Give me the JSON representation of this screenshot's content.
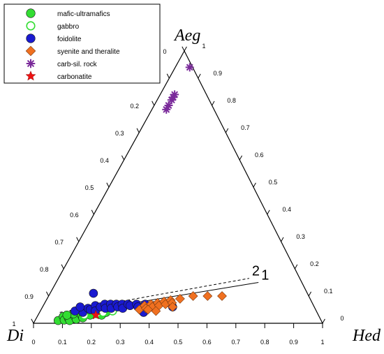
{
  "chart_data": {
    "type": "scatter",
    "subtype": "ternary",
    "title": "",
    "apices": {
      "left": "Di",
      "top": "Aeg",
      "right": "Hed"
    },
    "tick_labels": {
      "bottom": [
        "0",
        "0.1",
        "0.2",
        "0.3",
        "0.4",
        "0.5",
        "0.6",
        "0.7",
        "0.8",
        "0.9",
        "1"
      ],
      "left": [
        "1",
        "0.9",
        "0.8",
        "0.7",
        "0.6",
        "0.5",
        "0.4",
        "0.3",
        "0.2",
        "0.1",
        "0"
      ],
      "right": [
        "1",
        "0.9",
        "0.8",
        "0.7",
        "0.6",
        "0.5",
        "0.4",
        "0.3",
        "0.2",
        "0.1",
        "0"
      ]
    },
    "legend_position": "top-left",
    "series": [
      {
        "name": "mafic-ultramafics",
        "marker": "circle-filled",
        "color": "#33dd33",
        "points": [
          {
            "hed": 0.08,
            "aeg": 0.01
          },
          {
            "hed": 0.09,
            "aeg": 0.025
          },
          {
            "hed": 0.1,
            "aeg": 0.012
          },
          {
            "hed": 0.11,
            "aeg": 0.02
          },
          {
            "hed": 0.12,
            "aeg": 0.01
          },
          {
            "hed": 0.13,
            "aeg": 0.025
          },
          {
            "hed": 0.14,
            "aeg": 0.015
          },
          {
            "hed": 0.15,
            "aeg": 0.03
          },
          {
            "hed": 0.16,
            "aeg": 0.02
          },
          {
            "hed": 0.17,
            "aeg": 0.035
          },
          {
            "hed": 0.18,
            "aeg": 0.03
          },
          {
            "hed": 0.12,
            "aeg": 0.035
          },
          {
            "hed": 0.1,
            "aeg": 0.03
          },
          {
            "hed": 0.2,
            "aeg": 0.035
          },
          {
            "hed": 0.22,
            "aeg": 0.03
          },
          {
            "hed": 0.23,
            "aeg": 0.04
          }
        ]
      },
      {
        "name": "gabbro",
        "marker": "circle-open",
        "color": "#33dd33",
        "points": [
          {
            "hed": 0.16,
            "aeg": 0.03
          },
          {
            "hed": 0.2,
            "aeg": 0.035
          },
          {
            "hed": 0.22,
            "aeg": 0.04
          },
          {
            "hed": 0.25,
            "aeg": 0.045
          }
        ]
      },
      {
        "name": "foidolite",
        "marker": "circle-filled",
        "color": "#1a1ad0",
        "points": [
          {
            "hed": 0.14,
            "aeg": 0.05
          },
          {
            "hed": 0.15,
            "aeg": 0.04
          },
          {
            "hed": 0.16,
            "aeg": 0.055
          },
          {
            "hed": 0.17,
            "aeg": 0.05
          },
          {
            "hed": 0.18,
            "aeg": 0.065
          },
          {
            "hed": 0.19,
            "aeg": 0.045
          },
          {
            "hed": 0.2,
            "aeg": 0.06
          },
          {
            "hed": 0.21,
            "aeg": 0.07
          },
          {
            "hed": 0.22,
            "aeg": 0.055
          },
          {
            "hed": 0.23,
            "aeg": 0.07
          },
          {
            "hed": 0.24,
            "aeg": 0.055
          },
          {
            "hed": 0.25,
            "aeg": 0.07
          },
          {
            "hed": 0.26,
            "aeg": 0.06
          },
          {
            "hed": 0.27,
            "aeg": 0.07
          },
          {
            "hed": 0.28,
            "aeg": 0.055
          },
          {
            "hed": 0.29,
            "aeg": 0.07
          },
          {
            "hed": 0.3,
            "aeg": 0.065
          },
          {
            "hed": 0.32,
            "aeg": 0.07
          },
          {
            "hed": 0.33,
            "aeg": 0.06
          },
          {
            "hed": 0.35,
            "aeg": 0.07
          },
          {
            "hed": 0.36,
            "aeg": 0.04
          },
          {
            "hed": 0.38,
            "aeg": 0.065
          },
          {
            "hed": 0.45,
            "aeg": 0.06
          },
          {
            "hed": 0.44,
            "aeg": 0.07
          },
          {
            "hed": 0.15,
            "aeg": 0.11
          },
          {
            "hed": 0.12,
            "aeg": 0.045
          },
          {
            "hed": 0.13,
            "aeg": 0.06
          }
        ]
      },
      {
        "name": "syenite and theralite",
        "marker": "diamond",
        "color": "#f07020",
        "points": [
          {
            "hed": 0.34,
            "aeg": 0.05
          },
          {
            "hed": 0.35,
            "aeg": 0.065
          },
          {
            "hed": 0.36,
            "aeg": 0.055
          },
          {
            "hed": 0.37,
            "aeg": 0.07
          },
          {
            "hed": 0.38,
            "aeg": 0.06
          },
          {
            "hed": 0.39,
            "aeg": 0.075
          },
          {
            "hed": 0.4,
            "aeg": 0.065
          },
          {
            "hed": 0.41,
            "aeg": 0.08
          },
          {
            "hed": 0.42,
            "aeg": 0.07
          },
          {
            "hed": 0.43,
            "aeg": 0.085
          },
          {
            "hed": 0.44,
            "aeg": 0.075
          },
          {
            "hed": 0.46,
            "aeg": 0.09
          },
          {
            "hed": 0.5,
            "aeg": 0.1
          },
          {
            "hed": 0.55,
            "aeg": 0.1
          },
          {
            "hed": 0.6,
            "aeg": 0.1
          },
          {
            "hed": 0.45,
            "aeg": 0.06
          },
          {
            "hed": 0.4,
            "aeg": 0.045
          },
          {
            "hed": 0.37,
            "aeg": 0.05
          }
        ]
      },
      {
        "name": "carb-sil. rock",
        "marker": "asterisk",
        "color": "#7a2a9a",
        "points": [
          {
            "hed": 0.05,
            "aeg": 0.94
          },
          {
            "hed": 0.05,
            "aeg": 0.84
          },
          {
            "hed": 0.05,
            "aeg": 0.83
          },
          {
            "hed": 0.05,
            "aeg": 0.82
          },
          {
            "hed": 0.05,
            "aeg": 0.8
          },
          {
            "hed": 0.05,
            "aeg": 0.785
          }
        ]
      },
      {
        "name": "carbonatite",
        "marker": "star",
        "color": "#ee1111",
        "points": [
          {
            "hed": 0.2,
            "aeg": 0.03
          }
        ]
      }
    ],
    "lines": [
      {
        "label": "1",
        "style": "solid",
        "points": [
          {
            "hed": 0.1,
            "aeg": 0.035
          },
          {
            "hed": 0.7,
            "aeg": 0.15
          }
        ]
      },
      {
        "label": "2",
        "style": "dashed",
        "points": [
          {
            "hed": 0.07,
            "aeg": 0.04
          },
          {
            "hed": 0.66,
            "aeg": 0.165
          }
        ]
      }
    ]
  }
}
